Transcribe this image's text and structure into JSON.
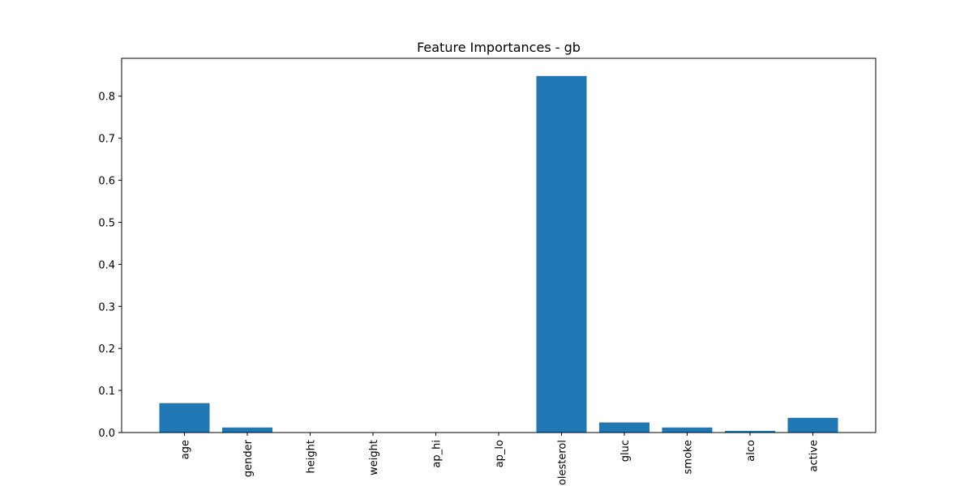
{
  "chart_data": {
    "type": "bar",
    "title": "Feature Importances - gb",
    "xlabel": "",
    "ylabel": "",
    "categories": [
      "age",
      "gender",
      "height",
      "weight",
      "ap_hi",
      "ap_lo",
      "cholesterol",
      "gluc",
      "smoke",
      "alco",
      "active"
    ],
    "values": [
      0.07,
      0.012,
      0.0,
      0.0,
      0.0,
      0.0,
      0.848,
      0.024,
      0.012,
      0.004,
      0.035
    ],
    "ylim": [
      0,
      0.89
    ],
    "yticks": [
      0.0,
      0.1,
      0.2,
      0.3,
      0.4,
      0.5,
      0.6,
      0.7,
      0.8
    ],
    "ytick_labels": [
      "0.0",
      "0.1",
      "0.2",
      "0.3",
      "0.4",
      "0.5",
      "0.6",
      "0.7",
      "0.8"
    ],
    "bar_color": "#1f77b4",
    "grid": false,
    "x_tick_rotation": "vertical"
  }
}
